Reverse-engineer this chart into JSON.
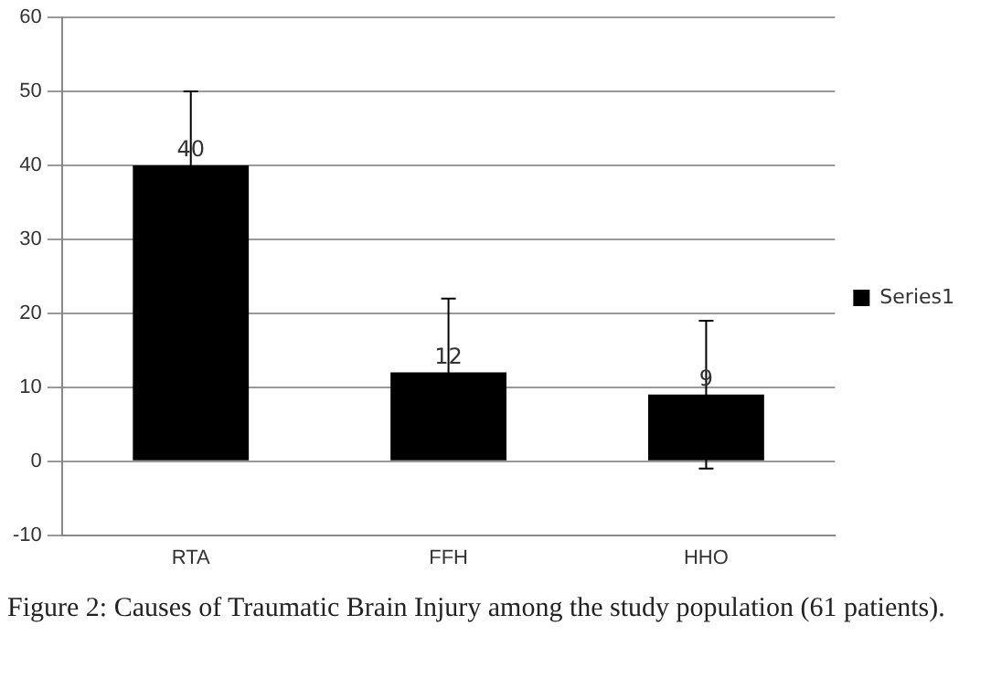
{
  "chart_data": {
    "type": "bar",
    "categories": [
      "RTA",
      "FFH",
      "HHO"
    ],
    "series": [
      {
        "name": "Series1",
        "color": "#000000",
        "values": [
          40,
          12,
          9
        ],
        "errors": [
          10,
          10,
          10
        ]
      }
    ],
    "ylim": [
      -10,
      60
    ],
    "yticks": [
      -10,
      0,
      10,
      20,
      30,
      40,
      50,
      60
    ],
    "grid": "y",
    "legend": "right",
    "data_labels": true,
    "annotations": [
      "Figure 2: Causes of Traumatic Brain Injury among the study population (61 patients)."
    ]
  }
}
